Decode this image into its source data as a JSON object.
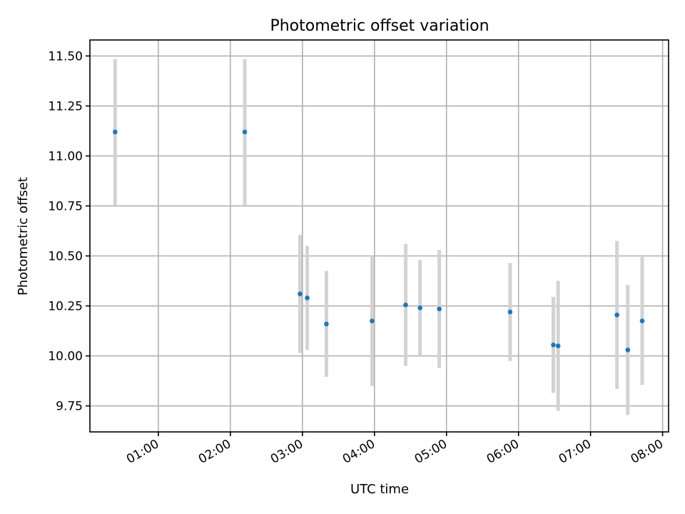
{
  "chart_data": {
    "type": "scatter",
    "title": "Photometric offset variation",
    "xlabel": "UTC time",
    "ylabel": "Photometric offset",
    "xlim": [
      "00:03",
      "08:05"
    ],
    "ylim": [
      9.62,
      11.58
    ],
    "grid": true,
    "x_ticks": [
      "01:00",
      "02:00",
      "03:00",
      "04:00",
      "05:00",
      "06:00",
      "07:00",
      "08:00"
    ],
    "y_ticks": [
      "9.75",
      "10.00",
      "10.25",
      "10.50",
      "10.75",
      "11.00",
      "11.25",
      "11.50"
    ],
    "points": [
      {
        "x": "00:24",
        "y": 11.12,
        "err": 0.365
      },
      {
        "x": "02:12",
        "y": 11.12,
        "err": 0.365
      },
      {
        "x": "02:58",
        "y": 10.31,
        "err": 0.295
      },
      {
        "x": "03:04",
        "y": 10.29,
        "err": 0.26
      },
      {
        "x": "03:20",
        "y": 10.16,
        "err": 0.265
      },
      {
        "x": "03:58",
        "y": 10.175,
        "err": 0.325
      },
      {
        "x": "04:26",
        "y": 10.255,
        "err": 0.305
      },
      {
        "x": "04:38",
        "y": 10.24,
        "err": 0.24
      },
      {
        "x": "04:54",
        "y": 10.235,
        "err": 0.295
      },
      {
        "x": "05:53",
        "y": 10.22,
        "err": 0.245
      },
      {
        "x": "06:29",
        "y": 10.055,
        "err": 0.24
      },
      {
        "x": "06:33",
        "y": 10.05,
        "err": 0.325
      },
      {
        "x": "07:22",
        "y": 10.205,
        "err": 0.37
      },
      {
        "x": "07:31",
        "y": 10.03,
        "err": 0.325
      },
      {
        "x": "07:43",
        "y": 10.175,
        "err": 0.32
      }
    ]
  }
}
